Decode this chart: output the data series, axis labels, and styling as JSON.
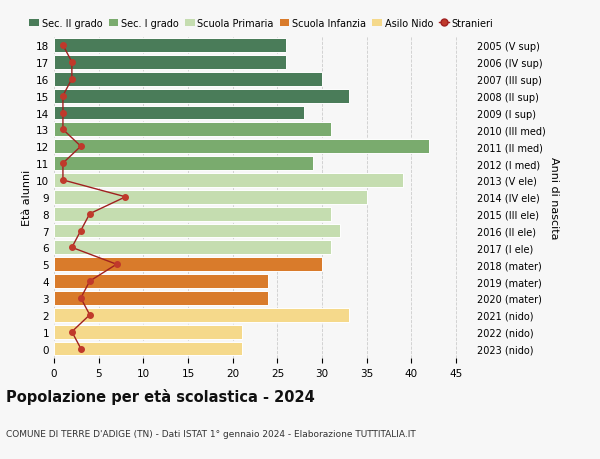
{
  "ages": [
    18,
    17,
    16,
    15,
    14,
    13,
    12,
    11,
    10,
    9,
    8,
    7,
    6,
    5,
    4,
    3,
    2,
    1,
    0
  ],
  "anni_nascita": [
    "2005 (V sup)",
    "2006 (IV sup)",
    "2007 (III sup)",
    "2008 (II sup)",
    "2009 (I sup)",
    "2010 (III med)",
    "2011 (II med)",
    "2012 (I med)",
    "2013 (V ele)",
    "2014 (IV ele)",
    "2015 (III ele)",
    "2016 (II ele)",
    "2017 (I ele)",
    "2018 (mater)",
    "2019 (mater)",
    "2020 (mater)",
    "2021 (nido)",
    "2022 (nido)",
    "2023 (nido)"
  ],
  "bar_values": [
    26,
    26,
    30,
    33,
    28,
    31,
    42,
    29,
    39,
    35,
    31,
    32,
    31,
    30,
    24,
    24,
    33,
    21,
    21
  ],
  "bar_colors": [
    "#4a7c59",
    "#4a7c59",
    "#4a7c59",
    "#4a7c59",
    "#4a7c59",
    "#7aab6e",
    "#7aab6e",
    "#7aab6e",
    "#c5ddb0",
    "#c5ddb0",
    "#c5ddb0",
    "#c5ddb0",
    "#c5ddb0",
    "#d97b2b",
    "#d97b2b",
    "#d97b2b",
    "#f5d98b",
    "#f5d98b",
    "#f5d98b"
  ],
  "stranieri_values": [
    1,
    2,
    2,
    1,
    1,
    1,
    3,
    1,
    1,
    8,
    4,
    3,
    2,
    7,
    4,
    3,
    4,
    2,
    3
  ],
  "legend_labels": [
    "Sec. II grado",
    "Sec. I grado",
    "Scuola Primaria",
    "Scuola Infanzia",
    "Asilo Nido",
    "Stranieri"
  ],
  "legend_colors": [
    "#4a7c59",
    "#7aab6e",
    "#c5ddb0",
    "#d97b2b",
    "#f5d98b",
    "#a02020"
  ],
  "title": "Popolazione per età scolastica - 2024",
  "subtitle": "COMUNE DI TERRE D'ADIGE (TN) - Dati ISTAT 1° gennaio 2024 - Elaborazione TUTTITALIA.IT",
  "ylabel_left": "Età alunni",
  "ylabel_right": "Anni di nascita",
  "xlim": [
    0,
    47
  ],
  "bg_color": "#f7f7f7",
  "grid_color": "#cccccc"
}
